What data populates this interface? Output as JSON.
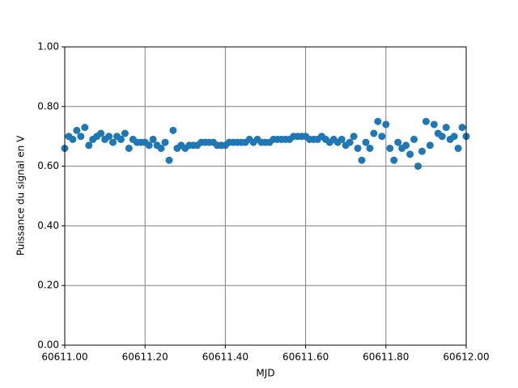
{
  "chart_data": {
    "type": "scatter",
    "x_label": "MJD",
    "y_label": "Puissance du signal en V",
    "color": "#1f77b4",
    "grid": true,
    "xlim": [
      60611.0,
      60612.0
    ],
    "xticks": [
      {
        "value": 60611.0,
        "label": "60611.00"
      },
      {
        "value": 60611.2,
        "label": "60611.20"
      },
      {
        "value": 60611.4,
        "label": "60611.40"
      },
      {
        "value": 60611.6,
        "label": "60611.60"
      },
      {
        "value": 60611.8,
        "label": "60611.80"
      },
      {
        "value": 60612.0,
        "label": "60612.00"
      }
    ],
    "ylim": [
      0,
      1
    ],
    "yticks": [
      {
        "value": 0,
        "label": "0.00"
      },
      {
        "value": 0.2,
        "label": "0.20"
      },
      {
        "value": 0.4,
        "label": "0.40"
      },
      {
        "value": 0.6,
        "label": "0.60"
      },
      {
        "value": 0.8,
        "label": "0.80"
      },
      {
        "value": 1,
        "label": "1.00"
      }
    ],
    "x": [
      60611.0,
      60611.01,
      60611.02,
      60611.03,
      60611.04,
      60611.05,
      60611.06,
      60611.07,
      60611.08,
      60611.09,
      60611.1,
      60611.11,
      60611.12,
      60611.13,
      60611.14,
      60611.15,
      60611.16,
      60611.17,
      60611.18,
      60611.19,
      60611.2,
      60611.21,
      60611.22,
      60611.23,
      60611.24,
      60611.25,
      60611.26,
      60611.27,
      60611.28,
      60611.29,
      60611.3,
      60611.31,
      60611.32,
      60611.33,
      60611.34,
      60611.35,
      60611.36,
      60611.37,
      60611.38,
      60611.39,
      60611.4,
      60611.41,
      60611.42,
      60611.43,
      60611.44,
      60611.45,
      60611.46,
      60611.47,
      60611.48,
      60611.49,
      60611.5,
      60611.51,
      60611.52,
      60611.53,
      60611.54,
      60611.55,
      60611.56,
      60611.57,
      60611.58,
      60611.59,
      60611.6,
      60611.61,
      60611.62,
      60611.63,
      60611.64,
      60611.65,
      60611.66,
      60611.67,
      60611.68,
      60611.69,
      60611.7,
      60611.71,
      60611.72,
      60611.73,
      60611.74,
      60611.75,
      60611.76,
      60611.77,
      60611.78,
      60611.79,
      60611.8,
      60611.81,
      60611.82,
      60611.83,
      60611.84,
      60611.85,
      60611.86,
      60611.87,
      60611.88,
      60611.89,
      60611.9,
      60611.91,
      60611.92,
      60611.93,
      60611.94,
      60611.95,
      60611.96,
      60611.97,
      60611.98,
      60611.99,
      60612.0
    ],
    "values": [
      0.66,
      0.7,
      0.69,
      0.72,
      0.7,
      0.73,
      0.67,
      0.69,
      0.7,
      0.71,
      0.69,
      0.7,
      0.68,
      0.7,
      0.69,
      0.71,
      0.66,
      0.69,
      0.68,
      0.68,
      0.68,
      0.67,
      0.69,
      0.67,
      0.66,
      0.68,
      0.62,
      0.72,
      0.66,
      0.67,
      0.66,
      0.67,
      0.67,
      0.67,
      0.68,
      0.68,
      0.68,
      0.68,
      0.67,
      0.67,
      0.67,
      0.68,
      0.68,
      0.68,
      0.68,
      0.68,
      0.69,
      0.68,
      0.69,
      0.68,
      0.68,
      0.68,
      0.69,
      0.69,
      0.69,
      0.69,
      0.69,
      0.7,
      0.7,
      0.7,
      0.7,
      0.69,
      0.69,
      0.69,
      0.7,
      0.69,
      0.68,
      0.69,
      0.68,
      0.69,
      0.67,
      0.68,
      0.7,
      0.66,
      0.62,
      0.68,
      0.66,
      0.71,
      0.75,
      0.7,
      0.74,
      0.66,
      0.62,
      0.68,
      0.66,
      0.67,
      0.64,
      0.69,
      0.6,
      0.65,
      0.75,
      0.67,
      0.74,
      0.71,
      0.7,
      0.73,
      0.69,
      0.7,
      0.66,
      0.73,
      0.7
    ]
  }
}
